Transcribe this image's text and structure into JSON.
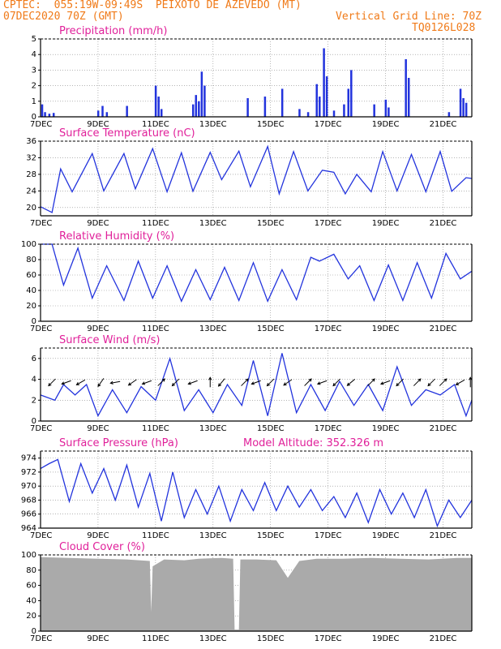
{
  "header": {
    "line1": "CPTEC:  055:19W-09:49S  PEIXOTO DE AZEVEDO (MT)",
    "line2_left": "07DEC2020 70Z (GMT)",
    "line2_right": "Vertical Grid Line: 70Z",
    "line3_right": "TQ0126L028"
  },
  "colors": {
    "header": "#f07a18",
    "title": "#e0209a",
    "line": "#2233dd",
    "cloud": "#aaaaaa",
    "grid": "#888888"
  },
  "x_axis": {
    "labels": [
      "7DEC",
      "9DEC",
      "11DEC",
      "13DEC",
      "15DEC",
      "17DEC",
      "19DEC",
      "21DEC"
    ],
    "days": 15
  },
  "chart_data": [
    {
      "type": "bar",
      "title": "Precipitation (mm/h)",
      "ylim": [
        0,
        5
      ],
      "yticks": [
        "0",
        "1",
        "2",
        "3",
        "4",
        "5"
      ],
      "series": [
        {
          "name": "Precipitation",
          "values": [
            {
              "day": 0.05,
              "v": 0.8
            },
            {
              "day": 0.15,
              "v": 0.3
            },
            {
              "day": 0.3,
              "v": 0.2
            },
            {
              "day": 0.45,
              "v": 0.25
            },
            {
              "day": 2.0,
              "v": 0.4
            },
            {
              "day": 2.15,
              "v": 0.7
            },
            {
              "day": 2.3,
              "v": 0.3
            },
            {
              "day": 3.0,
              "v": 0.7
            },
            {
              "day": 4.0,
              "v": 2.0
            },
            {
              "day": 4.1,
              "v": 1.3
            },
            {
              "day": 4.2,
              "v": 0.5
            },
            {
              "day": 5.3,
              "v": 0.8
            },
            {
              "day": 5.4,
              "v": 1.4
            },
            {
              "day": 5.5,
              "v": 1.0
            },
            {
              "day": 5.6,
              "v": 2.9
            },
            {
              "day": 5.7,
              "v": 2.0
            },
            {
              "day": 7.2,
              "v": 1.2
            },
            {
              "day": 7.8,
              "v": 1.3
            },
            {
              "day": 8.4,
              "v": 1.8
            },
            {
              "day": 9.0,
              "v": 0.5
            },
            {
              "day": 9.3,
              "v": 0.3
            },
            {
              "day": 9.6,
              "v": 2.1
            },
            {
              "day": 9.7,
              "v": 1.3
            },
            {
              "day": 9.85,
              "v": 4.4
            },
            {
              "day": 9.95,
              "v": 2.6
            },
            {
              "day": 10.2,
              "v": 0.4
            },
            {
              "day": 10.55,
              "v": 0.8
            },
            {
              "day": 10.7,
              "v": 1.8
            },
            {
              "day": 10.8,
              "v": 3.0
            },
            {
              "day": 11.6,
              "v": 0.8
            },
            {
              "day": 12.0,
              "v": 1.1
            },
            {
              "day": 12.1,
              "v": 0.6
            },
            {
              "day": 12.7,
              "v": 3.7
            },
            {
              "day": 12.8,
              "v": 2.5
            },
            {
              "day": 14.2,
              "v": 0.3
            },
            {
              "day": 14.6,
              "v": 1.8
            },
            {
              "day": 14.7,
              "v": 1.2
            },
            {
              "day": 14.8,
              "v": 0.9
            }
          ]
        }
      ]
    },
    {
      "type": "line",
      "title": "Surface Temperature (nC)",
      "ylim": [
        18,
        36
      ],
      "yticks": [
        "20",
        "24",
        "28",
        "32",
        "36"
      ],
      "series": [
        {
          "name": "Temperature",
          "values": [
            {
              "day": 0.0,
              "v": 20.2
            },
            {
              "day": 0.4,
              "v": 18.8
            },
            {
              "day": 0.7,
              "v": 29.3
            },
            {
              "day": 1.1,
              "v": 23.8
            },
            {
              "day": 1.8,
              "v": 33.0
            },
            {
              "day": 2.2,
              "v": 24.0
            },
            {
              "day": 2.9,
              "v": 33.0
            },
            {
              "day": 3.3,
              "v": 24.5
            },
            {
              "day": 3.9,
              "v": 34.2
            },
            {
              "day": 4.4,
              "v": 23.8
            },
            {
              "day": 4.9,
              "v": 33.2
            },
            {
              "day": 5.3,
              "v": 23.9
            },
            {
              "day": 5.9,
              "v": 33.3
            },
            {
              "day": 6.3,
              "v": 26.7
            },
            {
              "day": 6.9,
              "v": 33.6
            },
            {
              "day": 7.3,
              "v": 25.0
            },
            {
              "day": 7.9,
              "v": 34.7
            },
            {
              "day": 8.3,
              "v": 23.3
            },
            {
              "day": 8.8,
              "v": 33.5
            },
            {
              "day": 9.3,
              "v": 24.0
            },
            {
              "day": 9.8,
              "v": 29.0
            },
            {
              "day": 10.2,
              "v": 28.5
            },
            {
              "day": 10.6,
              "v": 23.3
            },
            {
              "day": 11.0,
              "v": 28.0
            },
            {
              "day": 11.5,
              "v": 23.8
            },
            {
              "day": 11.9,
              "v": 33.5
            },
            {
              "day": 12.4,
              "v": 24.0
            },
            {
              "day": 12.9,
              "v": 32.8
            },
            {
              "day": 13.4,
              "v": 23.8
            },
            {
              "day": 13.9,
              "v": 33.5
            },
            {
              "day": 14.3,
              "v": 23.9
            },
            {
              "day": 14.8,
              "v": 27.2
            },
            {
              "day": 15.0,
              "v": 27.0
            }
          ]
        }
      ]
    },
    {
      "type": "line",
      "title": "Relative Humidity (%)",
      "ylim": [
        0,
        100
      ],
      "yticks": [
        "0",
        "20",
        "40",
        "60",
        "80",
        "100"
      ],
      "series": [
        {
          "name": "Humidity",
          "values": [
            {
              "day": 0.0,
              "v": 100
            },
            {
              "day": 0.4,
              "v": 100
            },
            {
              "day": 0.8,
              "v": 47
            },
            {
              "day": 1.3,
              "v": 95
            },
            {
              "day": 1.8,
              "v": 30
            },
            {
              "day": 2.3,
              "v": 72
            },
            {
              "day": 2.9,
              "v": 27
            },
            {
              "day": 3.4,
              "v": 78
            },
            {
              "day": 3.9,
              "v": 30
            },
            {
              "day": 4.4,
              "v": 72
            },
            {
              "day": 4.9,
              "v": 26
            },
            {
              "day": 5.4,
              "v": 67
            },
            {
              "day": 5.9,
              "v": 28
            },
            {
              "day": 6.4,
              "v": 70
            },
            {
              "day": 6.9,
              "v": 27
            },
            {
              "day": 7.4,
              "v": 76
            },
            {
              "day": 7.9,
              "v": 26
            },
            {
              "day": 8.4,
              "v": 67
            },
            {
              "day": 8.9,
              "v": 28
            },
            {
              "day": 9.4,
              "v": 83
            },
            {
              "day": 9.7,
              "v": 78
            },
            {
              "day": 10.2,
              "v": 87
            },
            {
              "day": 10.7,
              "v": 55
            },
            {
              "day": 11.1,
              "v": 72
            },
            {
              "day": 11.6,
              "v": 27
            },
            {
              "day": 12.1,
              "v": 73
            },
            {
              "day": 12.6,
              "v": 27
            },
            {
              "day": 13.1,
              "v": 76
            },
            {
              "day": 13.6,
              "v": 30
            },
            {
              "day": 14.1,
              "v": 88
            },
            {
              "day": 14.6,
              "v": 55
            },
            {
              "day": 15.0,
              "v": 65
            }
          ]
        }
      ]
    },
    {
      "type": "line",
      "title": "Surface Wind (m/s)",
      "ylim": [
        0,
        7
      ],
      "yticks": [
        "0",
        "2",
        "4",
        "6"
      ],
      "series": [
        {
          "name": "Wind",
          "values": [
            {
              "day": 0.0,
              "v": 2.5
            },
            {
              "day": 0.5,
              "v": 2.0
            },
            {
              "day": 0.8,
              "v": 3.5
            },
            {
              "day": 1.2,
              "v": 2.5
            },
            {
              "day": 1.6,
              "v": 3.5
            },
            {
              "day": 2.0,
              "v": 0.5
            },
            {
              "day": 2.5,
              "v": 3.0
            },
            {
              "day": 3.0,
              "v": 0.8
            },
            {
              "day": 3.5,
              "v": 3.3
            },
            {
              "day": 4.0,
              "v": 2.0
            },
            {
              "day": 4.5,
              "v": 6.0
            },
            {
              "day": 5.0,
              "v": 1.0
            },
            {
              "day": 5.5,
              "v": 3.0
            },
            {
              "day": 6.0,
              "v": 0.8
            },
            {
              "day": 6.5,
              "v": 3.5
            },
            {
              "day": 7.0,
              "v": 1.5
            },
            {
              "day": 7.4,
              "v": 5.8
            },
            {
              "day": 7.9,
              "v": 0.5
            },
            {
              "day": 8.4,
              "v": 6.5
            },
            {
              "day": 8.9,
              "v": 0.8
            },
            {
              "day": 9.4,
              "v": 3.5
            },
            {
              "day": 9.9,
              "v": 1.0
            },
            {
              "day": 10.4,
              "v": 3.8
            },
            {
              "day": 10.9,
              "v": 1.5
            },
            {
              "day": 11.4,
              "v": 3.5
            },
            {
              "day": 11.9,
              "v": 1.0
            },
            {
              "day": 12.4,
              "v": 5.2
            },
            {
              "day": 12.9,
              "v": 1.5
            },
            {
              "day": 13.4,
              "v": 3.0
            },
            {
              "day": 13.9,
              "v": 2.5
            },
            {
              "day": 14.4,
              "v": 3.5
            },
            {
              "day": 14.8,
              "v": 0.5
            },
            {
              "day": 15.0,
              "v": 2.0
            }
          ]
        }
      ]
    },
    {
      "type": "line",
      "title": "Surface Pressure (hPa)",
      "annotation": "Model Altitude: 352.326 m",
      "ylim": [
        964,
        975
      ],
      "yticks": [
        "964",
        "966",
        "968",
        "970",
        "972",
        "974"
      ],
      "series": [
        {
          "name": "Pressure",
          "values": [
            {
              "day": 0.0,
              "v": 972.5
            },
            {
              "day": 0.3,
              "v": 973.2
            },
            {
              "day": 0.6,
              "v": 973.8
            },
            {
              "day": 1.0,
              "v": 967.8
            },
            {
              "day": 1.4,
              "v": 973.2
            },
            {
              "day": 1.8,
              "v": 969.0
            },
            {
              "day": 2.2,
              "v": 972.5
            },
            {
              "day": 2.6,
              "v": 968.0
            },
            {
              "day": 3.0,
              "v": 973.0
            },
            {
              "day": 3.4,
              "v": 967.0
            },
            {
              "day": 3.8,
              "v": 971.8
            },
            {
              "day": 4.2,
              "v": 965.0
            },
            {
              "day": 4.6,
              "v": 972.0
            },
            {
              "day": 5.0,
              "v": 965.5
            },
            {
              "day": 5.4,
              "v": 969.5
            },
            {
              "day": 5.8,
              "v": 966.0
            },
            {
              "day": 6.2,
              "v": 970.0
            },
            {
              "day": 6.6,
              "v": 965.0
            },
            {
              "day": 7.0,
              "v": 969.5
            },
            {
              "day": 7.4,
              "v": 966.5
            },
            {
              "day": 7.8,
              "v": 970.5
            },
            {
              "day": 8.2,
              "v": 966.5
            },
            {
              "day": 8.6,
              "v": 970.0
            },
            {
              "day": 9.0,
              "v": 967.0
            },
            {
              "day": 9.4,
              "v": 969.5
            },
            {
              "day": 9.8,
              "v": 966.5
            },
            {
              "day": 10.2,
              "v": 968.5
            },
            {
              "day": 10.6,
              "v": 965.5
            },
            {
              "day": 11.0,
              "v": 969.0
            },
            {
              "day": 11.4,
              "v": 964.8
            },
            {
              "day": 11.8,
              "v": 969.5
            },
            {
              "day": 12.2,
              "v": 966.0
            },
            {
              "day": 12.6,
              "v": 969.0
            },
            {
              "day": 13.0,
              "v": 965.5
            },
            {
              "day": 13.4,
              "v": 969.5
            },
            {
              "day": 13.8,
              "v": 964.3
            },
            {
              "day": 14.2,
              "v": 968.0
            },
            {
              "day": 14.6,
              "v": 965.5
            },
            {
              "day": 15.0,
              "v": 968.0
            }
          ]
        }
      ]
    },
    {
      "type": "area",
      "title": "Cloud Cover (%)",
      "ylim": [
        0,
        100
      ],
      "yticks": [
        "0",
        "20",
        "40",
        "60",
        "80",
        "100"
      ],
      "series": [
        {
          "name": "Cloud",
          "values": [
            {
              "day": 0.0,
              "v": 97
            },
            {
              "day": 1.0,
              "v": 96
            },
            {
              "day": 2.0,
              "v": 95
            },
            {
              "day": 3.0,
              "v": 94
            },
            {
              "day": 3.8,
              "v": 92
            },
            {
              "day": 3.85,
              "v": 25
            },
            {
              "day": 3.9,
              "v": 85
            },
            {
              "day": 4.3,
              "v": 94
            },
            {
              "day": 5.0,
              "v": 93
            },
            {
              "day": 5.5,
              "v": 95
            },
            {
              "day": 6.3,
              "v": 96
            },
            {
              "day": 6.7,
              "v": 95
            },
            {
              "day": 6.75,
              "v": 2
            },
            {
              "day": 6.9,
              "v": 2
            },
            {
              "day": 6.95,
              "v": 94
            },
            {
              "day": 7.5,
              "v": 94
            },
            {
              "day": 8.2,
              "v": 93
            },
            {
              "day": 8.6,
              "v": 70
            },
            {
              "day": 9.0,
              "v": 92
            },
            {
              "day": 9.6,
              "v": 95
            },
            {
              "day": 10.5,
              "v": 95
            },
            {
              "day": 11.5,
              "v": 96
            },
            {
              "day": 12.5,
              "v": 95
            },
            {
              "day": 13.5,
              "v": 94
            },
            {
              "day": 14.5,
              "v": 96
            },
            {
              "day": 15.0,
              "v": 96
            }
          ]
        }
      ]
    }
  ],
  "wind_arrows": [
    {
      "day": 0.4,
      "angle": 225
    },
    {
      "day": 0.9,
      "angle": 200
    },
    {
      "day": 1.4,
      "angle": 210
    },
    {
      "day": 2.1,
      "angle": 235
    },
    {
      "day": 2.6,
      "angle": 190
    },
    {
      "day": 3.2,
      "angle": 215
    },
    {
      "day": 3.7,
      "angle": 200
    },
    {
      "day": 4.2,
      "angle": 45
    },
    {
      "day": 4.7,
      "angle": 225
    },
    {
      "day": 5.3,
      "angle": 200
    },
    {
      "day": 5.9,
      "angle": 90
    },
    {
      "day": 6.3,
      "angle": 230
    },
    {
      "day": 7.1,
      "angle": 45
    },
    {
      "day": 7.5,
      "angle": 200
    },
    {
      "day": 8.0,
      "angle": 225
    },
    {
      "day": 8.6,
      "angle": 215
    },
    {
      "day": 9.3,
      "angle": 45
    },
    {
      "day": 9.8,
      "angle": 200
    },
    {
      "day": 10.3,
      "angle": 225
    },
    {
      "day": 10.8,
      "angle": 220
    },
    {
      "day": 11.5,
      "angle": 45
    },
    {
      "day": 12.0,
      "angle": 200
    },
    {
      "day": 12.5,
      "angle": 225
    },
    {
      "day": 13.1,
      "angle": 45
    },
    {
      "day": 13.6,
      "angle": 225
    },
    {
      "day": 14.0,
      "angle": 45
    },
    {
      "day": 14.6,
      "angle": 210
    },
    {
      "day": 14.95,
      "angle": 90
    }
  ]
}
